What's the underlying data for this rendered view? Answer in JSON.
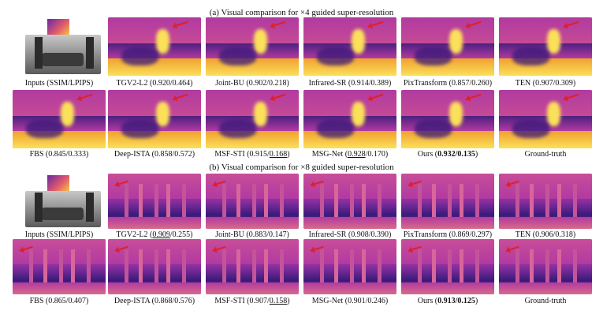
{
  "figure": {
    "title_a": "(a) Visual comparison for ×4 guided super-resolution",
    "title_b": "(b) Visual comparison for ×8 guided super-resolution",
    "colors": {
      "dark": "#3a1a7a",
      "mid": "#b13aa0",
      "hot": "#f0a030",
      "bright": "#fbe05a"
    }
  },
  "row_a1": [
    {
      "label": "Inputs (SSIM/LPIPS)",
      "score": "",
      "ul": "",
      "post": "",
      "bold": ""
    },
    {
      "label": "TGV2-L2 (0.920/0.464)",
      "score": "",
      "ul": "",
      "post": "",
      "bold": ""
    },
    {
      "label": "Joint-BU (0.902/0.218)",
      "score": "",
      "ul": "",
      "post": "",
      "bold": ""
    },
    {
      "label": "Infrared-SR (0.914/0.389)",
      "score": "",
      "ul": "",
      "post": "",
      "bold": ""
    },
    {
      "label": "PixTransform (0.857/0.260)",
      "score": "",
      "ul": "",
      "post": "",
      "bold": ""
    },
    {
      "label": "TEN (0.907/0.309)",
      "score": "",
      "ul": "",
      "post": "",
      "bold": ""
    }
  ],
  "row_a2": [
    {
      "pre": "FBS (0.845/0.333)",
      "ul": "",
      "post": "",
      "bold": ""
    },
    {
      "pre": "Deep-ISTA (0.858/0.572)",
      "ul": "",
      "post": "",
      "bold": ""
    },
    {
      "pre": "MSF-STI (0.915/",
      "ul": "0.168",
      "post": ")",
      "bold": ""
    },
    {
      "pre": "MSG-Net (",
      "ul": "0.928",
      "post": "/0.170)",
      "bold": ""
    },
    {
      "pre": "Ours (",
      "ul": "",
      "post": ")",
      "bold": "0.932/0.135"
    },
    {
      "pre": "Ground-truth",
      "ul": "",
      "post": "",
      "bold": ""
    }
  ],
  "row_b1": [
    {
      "pre": "Inputs (SSIM/LPIPS)",
      "ul": "",
      "post": "",
      "bold": ""
    },
    {
      "pre": "TGV2-L2 (",
      "ul": "0.909",
      "post": "/0.255)",
      "bold": ""
    },
    {
      "pre": "Joint-BU (0.883/0.147)",
      "ul": "",
      "post": "",
      "bold": ""
    },
    {
      "pre": "Infrared-SR (0.908/0.390)",
      "ul": "",
      "post": "",
      "bold": ""
    },
    {
      "pre": "PixTransform (0.869/0.297)",
      "ul": "",
      "post": "",
      "bold": ""
    },
    {
      "pre": "TEN (0.906/0.318)",
      "ul": "",
      "post": "",
      "bold": ""
    }
  ],
  "row_b2": [
    {
      "pre": "FBS (0.865/0.407)",
      "ul": "",
      "post": "",
      "bold": ""
    },
    {
      "pre": "Deep-ISTA (0.868/0.576)",
      "ul": "",
      "post": "",
      "bold": ""
    },
    {
      "pre": "MSF-STI (0.907/",
      "ul": "0.158",
      "post": ")",
      "bold": ""
    },
    {
      "pre": "MSG-Net (0.901/0.246)",
      "ul": "",
      "post": "",
      "bold": ""
    },
    {
      "pre": "Ours (",
      "ul": "",
      "post": ")",
      "bold": "0.913/0.125"
    },
    {
      "pre": "Ground-truth",
      "ul": "",
      "post": "",
      "bold": ""
    }
  ]
}
